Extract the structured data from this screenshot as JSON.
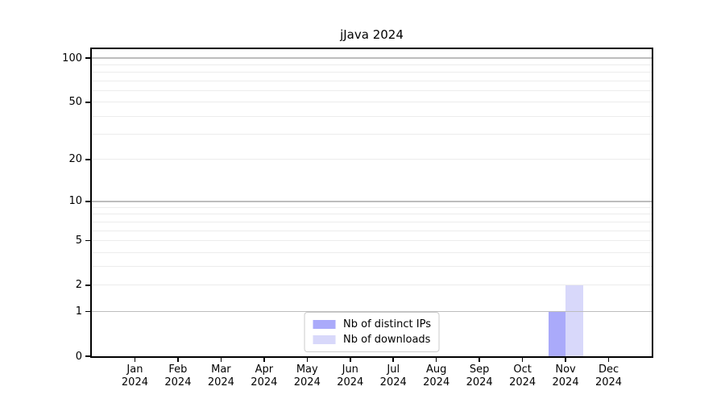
{
  "title": "jJava 2024",
  "chart_data": {
    "type": "bar",
    "title": "jJava 2024",
    "categories": [
      "Jan 2024",
      "Feb 2024",
      "Mar 2024",
      "Apr 2024",
      "May 2024",
      "Jun 2024",
      "Jul 2024",
      "Aug 2024",
      "Sep 2024",
      "Oct 2024",
      "Nov 2024",
      "Dec 2024"
    ],
    "series": [
      {
        "name": "Nb of distinct IPs",
        "color": "#aaaafa",
        "values": [
          0,
          0,
          0,
          0,
          0,
          0,
          0,
          0,
          0,
          0,
          1,
          0
        ]
      },
      {
        "name": "Nb of downloads",
        "color": "#d8d8fa",
        "values": [
          0,
          0,
          0,
          0,
          0,
          0,
          0,
          0,
          0,
          0,
          2,
          0
        ]
      }
    ],
    "xlabel": "",
    "ylabel": "",
    "y_scale": "log10(1+v)",
    "ylim": [
      0,
      115
    ],
    "y_ticks": [
      0,
      1,
      2,
      5,
      10,
      20,
      50,
      100
    ],
    "y_major_gridlines": [
      1,
      10,
      100
    ],
    "y_minor_gridlines": [
      2,
      3,
      4,
      5,
      6,
      7,
      8,
      9,
      20,
      30,
      40,
      50,
      60,
      70,
      80,
      90
    ],
    "grid": "horizontal",
    "legend_position": "lower center"
  },
  "legend": {
    "entries": [
      "Nb of distinct IPs",
      "Nb of downloads"
    ]
  },
  "colors": {
    "bar_distinct_ips": "#aaaafa",
    "bar_downloads": "#d8d8fa",
    "grid_major": "#bdbdbd",
    "grid_minor": "#ececec",
    "spine": "#000000",
    "legend_border": "#cccccc",
    "background": "#ffffff"
  }
}
